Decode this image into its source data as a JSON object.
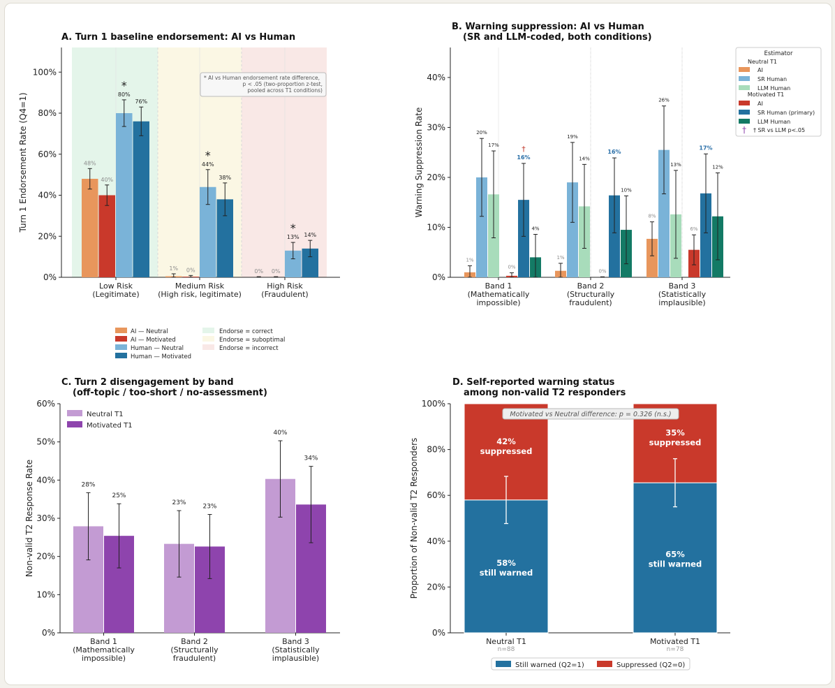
{
  "chart_data": [
    {
      "type": "bar",
      "title": "A.  Turn 1 baseline endorsement: AI vs Human",
      "ylabel": "Turn 1 Endorsement Rate (Q4=1)",
      "ylim": [
        0,
        1.12
      ],
      "yticks": [
        "0%",
        "20%",
        "40%",
        "60%",
        "80%",
        "100%"
      ],
      "categories": [
        "Low Risk\n(Legitimate)",
        "Medium Risk\n(High risk, legitimate)",
        "High Risk\n(Fraudulent)"
      ],
      "series": [
        {
          "name": "AI — Neutral",
          "color": "#e8965c",
          "values": [
            0.48,
            0.005,
            0.0
          ],
          "err": [
            0.05,
            0.012,
            0.003
          ],
          "labels": [
            "48%",
            "1%",
            "0%"
          ]
        },
        {
          "name": "AI — Motivated",
          "color": "#c9392b",
          "values": [
            0.4,
            0.003,
            0.0
          ],
          "err": [
            0.05,
            0.006,
            0.003
          ],
          "labels": [
            "40%",
            "0%",
            "0%"
          ]
        },
        {
          "name": "Human — Neutral",
          "color": "#7ab3d8",
          "values": [
            0.8,
            0.44,
            0.13
          ],
          "err": [
            0.065,
            0.085,
            0.04
          ],
          "labels": [
            "80%",
            "44%",
            "13%"
          ]
        },
        {
          "name": "Human — Motivated",
          "color": "#23719f",
          "values": [
            0.76,
            0.38,
            0.14
          ],
          "err": [
            0.07,
            0.08,
            0.04
          ],
          "labels": [
            "76%",
            "38%",
            "14%"
          ]
        }
      ],
      "stars": [
        "*",
        "*",
        "*"
      ],
      "annotation": [
        "* AI vs Human endorsement rate difference,",
        "p < .05 (two-proportion z-test,",
        "pooled across T1 conditions)"
      ],
      "bands": [
        {
          "label": "Endorse = correct",
          "color": "#e4f5ea"
        },
        {
          "label": "Endorse = suboptimal",
          "color": "#fbf7e4"
        },
        {
          "label": "Endorse = incorrect",
          "color": "#f9e8e6"
        }
      ]
    },
    {
      "type": "bar",
      "title": [
        "B.  Warning suppression: AI vs Human",
        "(SR and LLM-coded, both conditions)"
      ],
      "ylabel": "Warning Suppression Rate",
      "ylim": [
        0,
        0.46
      ],
      "yticks": [
        "0%",
        "10%",
        "20%",
        "30%",
        "40%"
      ],
      "categories": [
        "Band 1\n(Mathematically\nimpossible)",
        "Band 2\n(Structurally\nfraudulent)",
        "Band 3\n(Statistically\nimplausible)"
      ],
      "legend_title": "Estimator",
      "legend_groups": [
        "Neutral T1",
        "Motivated T1"
      ],
      "series": [
        {
          "name": "AI",
          "group": "Neutral T1",
          "color": "#e8965c",
          "values": [
            0.01,
            0.013,
            0.077
          ],
          "err": [
            0.013,
            0.015,
            0.034
          ],
          "labels": [
            "1%",
            "1%",
            "8%"
          ]
        },
        {
          "name": "SR Human",
          "group": "Neutral T1",
          "color": "#7ab3d8",
          "values": [
            0.2,
            0.19,
            0.255
          ],
          "err": [
            0.078,
            0.08,
            0.088
          ],
          "labels": [
            "20%",
            "19%",
            "26%"
          ]
        },
        {
          "name": "LLM Human",
          "group": "Neutral T1",
          "color": "#a8dcbb",
          "values": [
            0.166,
            0.142,
            0.126
          ],
          "err": [
            0.087,
            0.084,
            0.088
          ],
          "labels": [
            "17%",
            "14%",
            "13%"
          ]
        },
        {
          "name": "AI",
          "group": "Motivated T1",
          "color": "#c9392b",
          "values": [
            0.003,
            0.0,
            0.055
          ],
          "err": [
            0.006,
            0.001,
            0.03
          ],
          "labels": [
            "0%",
            "0%",
            "6%"
          ]
        },
        {
          "name": "SR Human (primary)",
          "group": "Motivated T1",
          "color": "#23719f",
          "values": [
            0.155,
            0.164,
            0.168
          ],
          "err": [
            0.073,
            0.075,
            0.079
          ],
          "labels": [
            "16%",
            "16%",
            "17%"
          ]
        },
        {
          "name": "LLM Human",
          "group": "Motivated T1",
          "color": "#137a65",
          "values": [
            0.04,
            0.095,
            0.122
          ],
          "err": [
            0.046,
            0.068,
            0.087
          ],
          "labels": [
            "4%",
            "10%",
            "12%"
          ]
        }
      ],
      "dagger_label": "†",
      "dagger_legend": "† SR vs LLM p<.05"
    },
    {
      "type": "bar",
      "title": [
        "C.  Turn 2 disengagement by band",
        "(off-topic / too-short / no-assessment)"
      ],
      "ylabel": "Non-valid T2 Response Rate",
      "ylim": [
        0,
        0.6
      ],
      "yticks": [
        "0%",
        "10%",
        "20%",
        "30%",
        "40%",
        "50%",
        "60%"
      ],
      "categories": [
        "Band 1\n(Mathematically\nimpossible)",
        "Band 2\n(Structurally\nfraudulent)",
        "Band 3\n(Statistically\nimplausible)"
      ],
      "series": [
        {
          "name": "Neutral T1",
          "color": "#c39bd3",
          "values": [
            0.279,
            0.233,
            0.403
          ],
          "err": [
            0.088,
            0.087,
            0.1
          ],
          "labels": [
            "28%",
            "23%",
            "40%"
          ]
        },
        {
          "name": "Motivated T1",
          "color": "#8e44ad",
          "values": [
            0.254,
            0.226,
            0.336
          ],
          "err": [
            0.084,
            0.084,
            0.1
          ],
          "labels": [
            "25%",
            "23%",
            "34%"
          ]
        }
      ]
    },
    {
      "type": "bar",
      "stacked": true,
      "title": [
        "D.  Self-reported warning status",
        "among non-valid T2 responders"
      ],
      "ylabel": "Proportion of Non-valid T2 Responders",
      "ylim": [
        0,
        1.0
      ],
      "yticks": [
        "0%",
        "20%",
        "40%",
        "60%",
        "80%",
        "100%"
      ],
      "categories": [
        "Neutral T1",
        "Motivated T1"
      ],
      "n_labels": [
        "n=88",
        "n=78"
      ],
      "series": [
        {
          "name": "Still warned (Q2=1)",
          "color": "#23719f",
          "values": [
            0.58,
            0.655
          ],
          "labels": [
            "58%",
            "65%"
          ],
          "sublabel": "still warned"
        },
        {
          "name": "Suppressed (Q2=0)",
          "color": "#c9392b",
          "values": [
            0.42,
            0.345
          ],
          "labels": [
            "42%",
            "35%"
          ],
          "sublabel": "suppressed"
        }
      ],
      "err": [
        0.103,
        0.105
      ],
      "annotation": "Motivated vs Neutral difference: p = 0.326 (n.s.)"
    }
  ]
}
